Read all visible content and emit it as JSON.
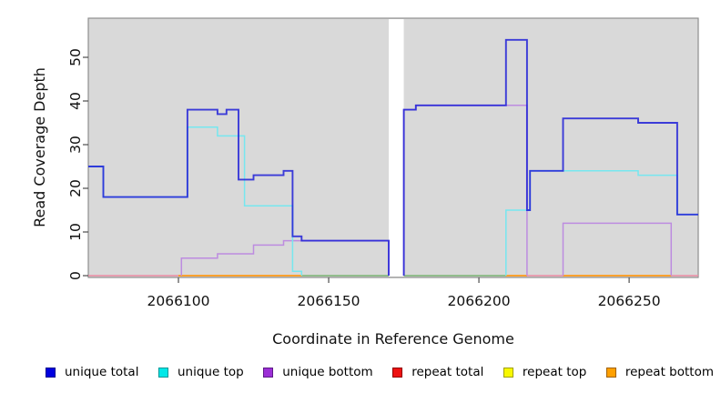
{
  "layout_colors": {
    "plot_bg": "#d9d9d9",
    "plot_border": "#8e8e8e",
    "tick_color": "#4d4d4d",
    "text_color": "#111111"
  },
  "axes": {
    "x": {
      "label": "Coordinate in Reference Genome"
    },
    "y": {
      "label": "Read Coverage Depth"
    }
  },
  "chart_data": {
    "type": "line",
    "subtype": "step-coverage",
    "title": "",
    "xlabel": "Coordinate in Reference Genome",
    "ylabel": "Read Coverage Depth",
    "x_range": [
      2066070,
      2066273
    ],
    "y_range": [
      0,
      59
    ],
    "x_ticks": [
      2066100,
      2066150,
      2066200,
      2066250
    ],
    "y_ticks": [
      0,
      10,
      20,
      30,
      40,
      50
    ],
    "grid": false,
    "legend_position": "bottom",
    "no_data_region": [
      2066170,
      2066175
    ],
    "series": [
      {
        "id": "repeat-total",
        "name": "repeat total",
        "legend_color": "#ee1111",
        "line_color": "#ec8aa2",
        "width": 1.6,
        "segments": [
          {
            "points": [
              [
                2066070,
                0
              ]
            ],
            "end": 2066170
          },
          {
            "points": [
              [
                2066175,
                0
              ]
            ],
            "end": 2066273
          }
        ]
      },
      {
        "id": "repeat-top",
        "name": "repeat top",
        "legend_color": "#f8f800",
        "line_color": "#77c17c",
        "width": 1.6,
        "segments": [
          {
            "points": [
              [
                2066141,
                0
              ]
            ],
            "end": 2066170
          },
          {
            "points": [
              [
                2066175,
                0
              ]
            ],
            "end": 2066209
          }
        ]
      },
      {
        "id": "repeat-bottom",
        "name": "repeat bottom",
        "legend_color": "#ffa000",
        "line_color": "#ff9f1a",
        "width": 1.8,
        "segments": [
          {
            "points": [
              [
                2066100,
                0
              ]
            ],
            "end": 2066141
          },
          {
            "points": [
              [
                2066209,
                0
              ]
            ],
            "end": 2066216
          },
          {
            "points": [
              [
                2066228,
                0
              ]
            ],
            "end": 2066264
          }
        ]
      },
      {
        "id": "unique-bottom",
        "name": "unique bottom",
        "legend_color": "#9c2fd6",
        "line_color": "#bd8ce0",
        "width": 1.5,
        "segments": [
          {
            "points": [
              [
                2066101,
                0
              ],
              [
                2066101,
                4
              ],
              [
                2066113,
                5
              ],
              [
                2066125,
                7
              ],
              [
                2066135,
                8
              ],
              [
                2066170,
                0
              ]
            ],
            "end": 2066170
          },
          {
            "points": [
              [
                2066175,
                0
              ],
              [
                2066175,
                38
              ],
              [
                2066179,
                39
              ],
              [
                2066216,
                0
              ]
            ],
            "end": 2066216
          },
          {
            "points": [
              [
                2066228,
                0
              ],
              [
                2066228,
                12
              ],
              [
                2066264,
                0
              ]
            ],
            "end": 2066264
          }
        ]
      },
      {
        "id": "unique-top",
        "name": "unique top",
        "legend_color": "#00e8e8",
        "line_color": "#76e7ef",
        "width": 1.5,
        "segments": [
          {
            "points": [
              [
                2066070,
                25
              ],
              [
                2066075,
                18
              ],
              [
                2066103,
                34
              ],
              [
                2066113,
                32
              ],
              [
                2066122,
                16
              ],
              [
                2066138,
                1
              ],
              [
                2066141,
                0
              ]
            ],
            "end": 2066141
          },
          {
            "points": [
              [
                2066209,
                0
              ],
              [
                2066209,
                15
              ],
              [
                2066217,
                24
              ],
              [
                2066253,
                23
              ],
              [
                2066266,
                14
              ]
            ],
            "end": 2066273
          }
        ]
      },
      {
        "id": "unique-total",
        "name": "unique total",
        "legend_color": "#0000e0",
        "line_color": "rgba(30,30,215,0.85)",
        "width": 1.9,
        "segments": [
          {
            "points": [
              [
                2066070,
                25
              ],
              [
                2066075,
                18
              ],
              [
                2066103,
                38
              ],
              [
                2066113,
                37
              ],
              [
                2066116,
                38
              ],
              [
                2066120,
                22
              ],
              [
                2066125,
                23
              ],
              [
                2066135,
                24
              ],
              [
                2066138,
                9
              ],
              [
                2066141,
                8
              ],
              [
                2066170,
                0
              ]
            ],
            "end": 2066170
          },
          {
            "points": [
              [
                2066175,
                0
              ],
              [
                2066175,
                38
              ],
              [
                2066179,
                39
              ],
              [
                2066209,
                54
              ],
              [
                2066216,
                15
              ],
              [
                2066217,
                24
              ],
              [
                2066228,
                36
              ],
              [
                2066253,
                35
              ],
              [
                2066266,
                14
              ]
            ],
            "end": 2066273
          }
        ]
      }
    ]
  },
  "legend": {
    "items": [
      {
        "id": "unique-total",
        "label": "unique total",
        "fill": "#0000e0",
        "border": "#000090"
      },
      {
        "id": "unique-top",
        "label": "unique top",
        "fill": "#00e8e8",
        "border": "#009898"
      },
      {
        "id": "unique-bottom",
        "label": "unique bottom",
        "fill": "#9c2fd6",
        "border": "#5c1a86"
      },
      {
        "id": "repeat-total",
        "label": "repeat total",
        "fill": "#ee1111",
        "border": "#900000"
      },
      {
        "id": "repeat-top",
        "label": "repeat top",
        "fill": "#f8f800",
        "border": "#a0a000"
      },
      {
        "id": "repeat-bottom",
        "label": "repeat bottom",
        "fill": "#ffa000",
        "border": "#a06000"
      }
    ]
  }
}
